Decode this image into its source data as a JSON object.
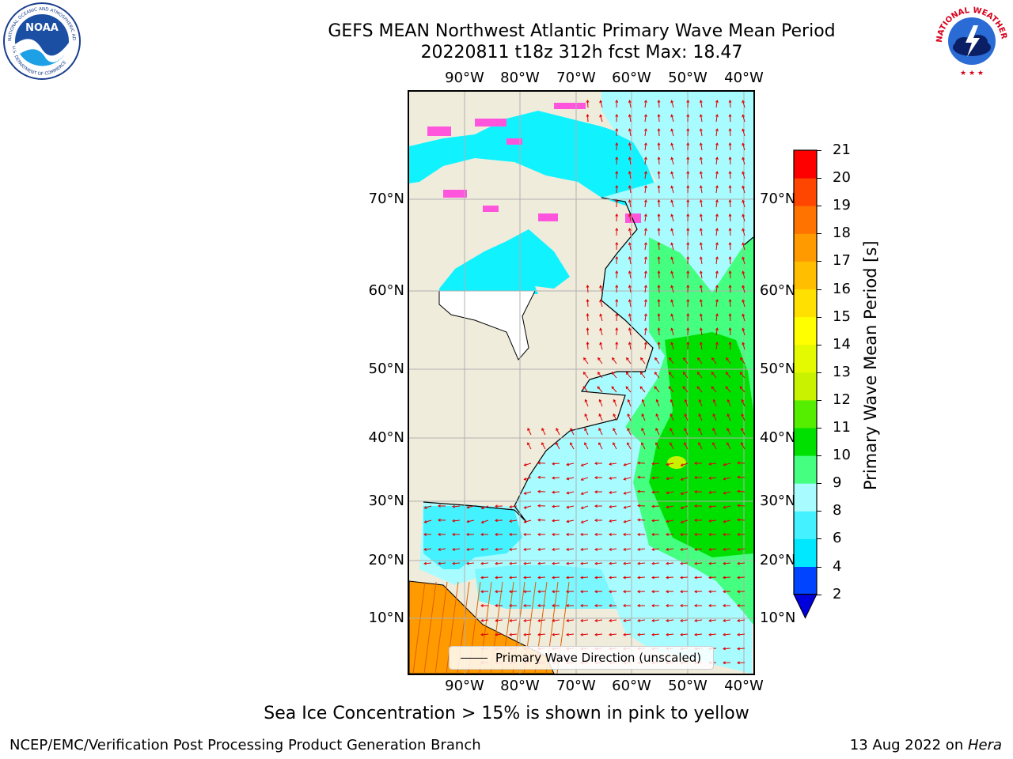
{
  "title_line1": "GEFS MEAN Northwest Atlantic Primary Wave Mean Period",
  "title_line2": "20220811 t18z 312h fcst   Max: 18.47",
  "logos": {
    "left": "noaa-logo",
    "right": "nws-logo"
  },
  "left_logo_texts": {
    "center": "NOAA",
    "ring": "NATIONAL OCEANIC AND ATMOSPHERIC ADMINISTRATION",
    "ring_bottom": "U.S. DEPARTMENT OF COMMERCE"
  },
  "right_logo_texts": {
    "ring": "NATIONAL WEATHER SERVICE"
  },
  "map": {
    "lon_labels": [
      "90°W",
      "80°W",
      "70°W",
      "60°W",
      "50°W",
      "40°W"
    ],
    "lat_labels": [
      "70°N",
      "60°N",
      "50°N",
      "40°N",
      "30°N",
      "20°N",
      "10°N"
    ],
    "land_color": "#efecdc",
    "grid_color": "#b0b0b0"
  },
  "legend": {
    "label": "Primary Wave Direction (unscaled)",
    "arrow_color": "#e00000"
  },
  "colorbar": {
    "label": "Primary Wave Mean Period [s]",
    "ticks": [
      "2",
      "4",
      "6",
      "8",
      "9",
      "10",
      "11",
      "12",
      "13",
      "14",
      "15",
      "16",
      "17",
      "18",
      "19",
      "20",
      "21"
    ],
    "colors": [
      "#0044ff",
      "#00e8ff",
      "#44f2ff",
      "#a8fcff",
      "#44ff80",
      "#00e000",
      "#55ee00",
      "#c8f200",
      "#e4fa00",
      "#ffff00",
      "#ffe000",
      "#ffbf00",
      "#ff9a00",
      "#ff7400",
      "#ff4600",
      "#ff0000"
    ],
    "extend_color": "#0000dd"
  },
  "note": "Sea Ice Concentration > 15% is shown in pink to yellow",
  "footer_left": "NCEP/EMC/Verification Post Processing Product Generation Branch",
  "footer_right_prefix": "13 Aug 2022 on ",
  "footer_right_host": "Hera"
}
